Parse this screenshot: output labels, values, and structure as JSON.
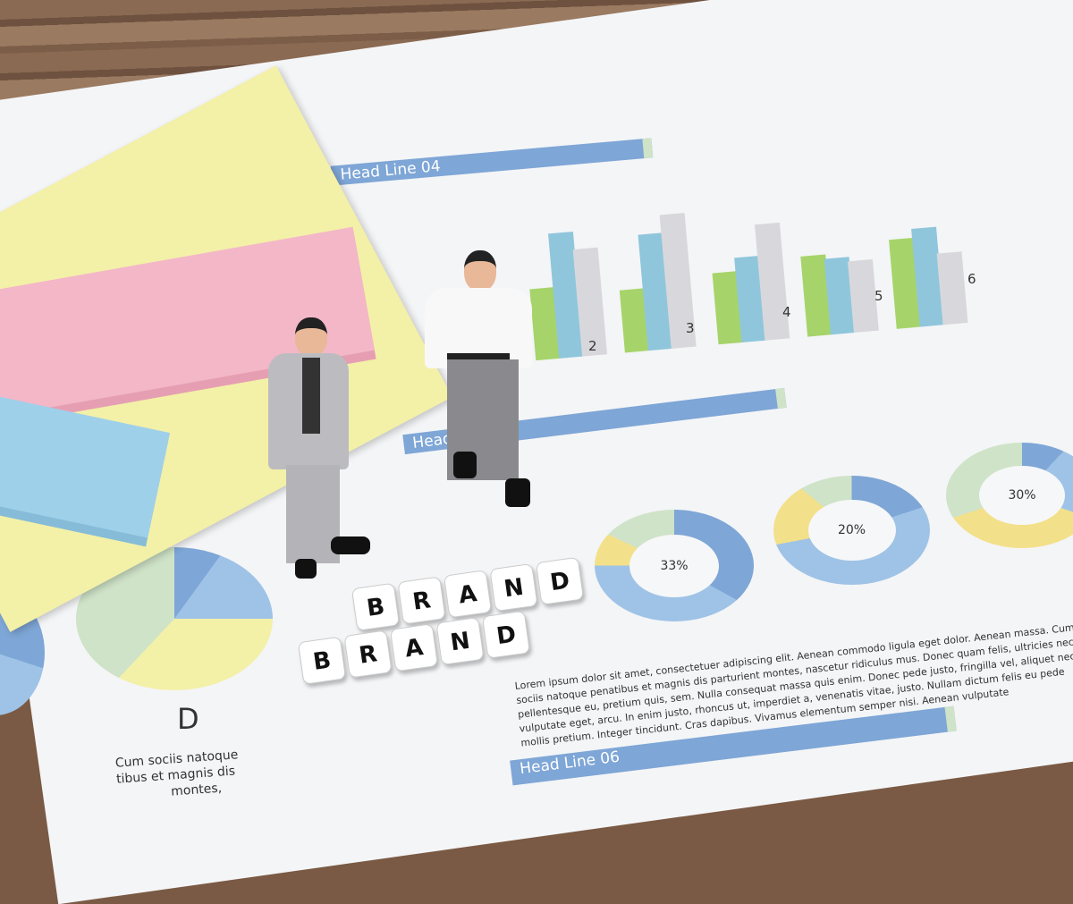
{
  "document": {
    "headlines": [
      "Head Line 04",
      "Head Line 05",
      "Head Line 06"
    ],
    "bar_chart_labels": [
      "2",
      "3",
      "4",
      "5",
      "6"
    ],
    "donut_labels": [
      "33%",
      "20%",
      "30%"
    ],
    "pie_label": "D",
    "pie_caption": [
      "Cum sociis natoque",
      "tibus et magnis dis",
      "montes,"
    ],
    "paragraph": "Lorem ipsum dolor sit amet, consectetuer adipiscing elit. Aenean commodo ligula eget dolor. Aenean massa. Cum sociis natoque penatibus et magnis dis parturient montes, nascetur ridiculus mus. Donec quam felis, ultricies nec, pellentesque eu, pretium quis, sem. Nulla consequat massa quis enim. Donec pede justo, fringilla vel, aliquet nec, vulputate eget, arcu. In enim justo, rhoncus ut, imperdiet a, venenatis vitae, justo. Nullam dictum felis eu pede mollis pretium. Integer tincidunt. Cras dapibus. Vivamus elementum semper nisi. Aenean vulputate"
  },
  "blocks": {
    "row1": [
      "B",
      "R",
      "A",
      "N",
      "D"
    ],
    "row2": [
      "B",
      "R",
      "A",
      "N",
      "D"
    ]
  },
  "colors": {
    "blue": "#7ea6d6",
    "green": "#a6d46a",
    "teal": "#8fc6dc",
    "gray": "#d8d8dc",
    "yellow": "#f3f0a8",
    "pink": "#f3b7c8",
    "lightblue": "#9fd0ea"
  }
}
